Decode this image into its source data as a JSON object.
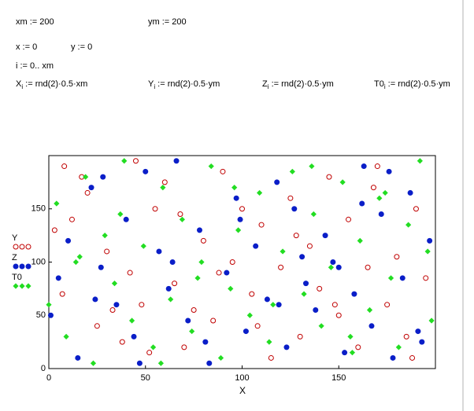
{
  "worksheet": {
    "assignments": [
      "xm := 200",
      "ym := 200",
      "x := 0",
      "y := 0",
      "i := 0.. xm"
    ],
    "definitions": [
      {
        "name": "X",
        "sub": "i",
        "expr": " := rnd(2)·0.5·xm"
      },
      {
        "name": "Y",
        "sub": "i",
        "expr": " := rnd(2)·0.5·ym"
      },
      {
        "name": "Z",
        "sub": "i",
        "expr": " := rnd(2)·0.5·ym"
      },
      {
        "name": "T0",
        "sub": "i",
        "expr": " := rnd(2)·0.5·ym"
      }
    ]
  },
  "chart_data": {
    "type": "scatter",
    "x_label": "X",
    "xlim": [
      0,
      200
    ],
    "ylim": [
      0,
      200
    ],
    "xticks": [
      0,
      50,
      100,
      150
    ],
    "yticks": [
      0,
      50,
      100,
      150
    ],
    "series": [
      {
        "name": "Y",
        "color": "#c00000",
        "marker": "open-circle",
        "x": [
          3,
          8,
          12,
          20,
          25,
          30,
          38,
          42,
          48,
          55,
          60,
          65,
          70,
          75,
          80,
          85,
          90,
          95,
          100,
          105,
          110,
          115,
          120,
          125,
          130,
          135,
          140,
          145,
          150,
          155,
          160,
          165,
          170,
          175,
          180,
          185,
          190,
          195,
          7,
          17,
          33,
          52,
          68,
          88,
          108,
          128,
          148,
          168,
          188,
          45
        ],
        "values": [
          130,
          190,
          140,
          165,
          40,
          110,
          25,
          90,
          60,
          150,
          175,
          80,
          20,
          55,
          120,
          45,
          185,
          100,
          150,
          70,
          135,
          10,
          95,
          160,
          30,
          115,
          75,
          180,
          50,
          140,
          20,
          95,
          190,
          60,
          105,
          30,
          150,
          85,
          70,
          180,
          55,
          15,
          145,
          90,
          40,
          125,
          60,
          170,
          10,
          195
        ]
      },
      {
        "name": "Z",
        "color": "#0a1ec8",
        "marker": "dot",
        "x": [
          1,
          5,
          10,
          15,
          22,
          27,
          35,
          40,
          44,
          50,
          57,
          62,
          66,
          72,
          78,
          83,
          92,
          97,
          102,
          107,
          113,
          118,
          123,
          127,
          133,
          138,
          143,
          147,
          153,
          158,
          163,
          167,
          172,
          178,
          183,
          187,
          193,
          197,
          24,
          47,
          64,
          99,
          131,
          176,
          150,
          28,
          81,
          119,
          162,
          191
        ],
        "values": [
          50,
          85,
          120,
          10,
          170,
          95,
          60,
          140,
          30,
          185,
          110,
          75,
          195,
          45,
          130,
          5,
          90,
          160,
          35,
          115,
          65,
          175,
          20,
          150,
          80,
          55,
          125,
          100,
          15,
          70,
          190,
          40,
          145,
          10,
          85,
          165,
          25,
          120,
          65,
          5,
          100,
          140,
          105,
          185,
          95,
          180,
          25,
          60,
          155,
          35
        ]
      },
      {
        "name": "T0",
        "color": "#22dd22",
        "marker": "diamond",
        "x": [
          0,
          4,
          9,
          14,
          19,
          23,
          29,
          34,
          39,
          43,
          49,
          54,
          59,
          63,
          69,
          74,
          79,
          84,
          89,
          94,
          98,
          104,
          109,
          114,
          121,
          126,
          132,
          137,
          141,
          146,
          152,
          157,
          161,
          166,
          171,
          177,
          181,
          186,
          192,
          198,
          16,
          37,
          58,
          77,
          96,
          116,
          136,
          156,
          174,
          196
        ],
        "values": [
          60,
          155,
          30,
          100,
          180,
          5,
          125,
          80,
          195,
          45,
          115,
          20,
          170,
          65,
          140,
          35,
          100,
          190,
          10,
          75,
          130,
          50,
          165,
          25,
          110,
          185,
          70,
          145,
          40,
          95,
          175,
          15,
          120,
          55,
          160,
          85,
          20,
          135,
          195,
          45,
          105,
          145,
          5,
          85,
          170,
          60,
          190,
          30,
          165,
          110
        ]
      }
    ]
  }
}
